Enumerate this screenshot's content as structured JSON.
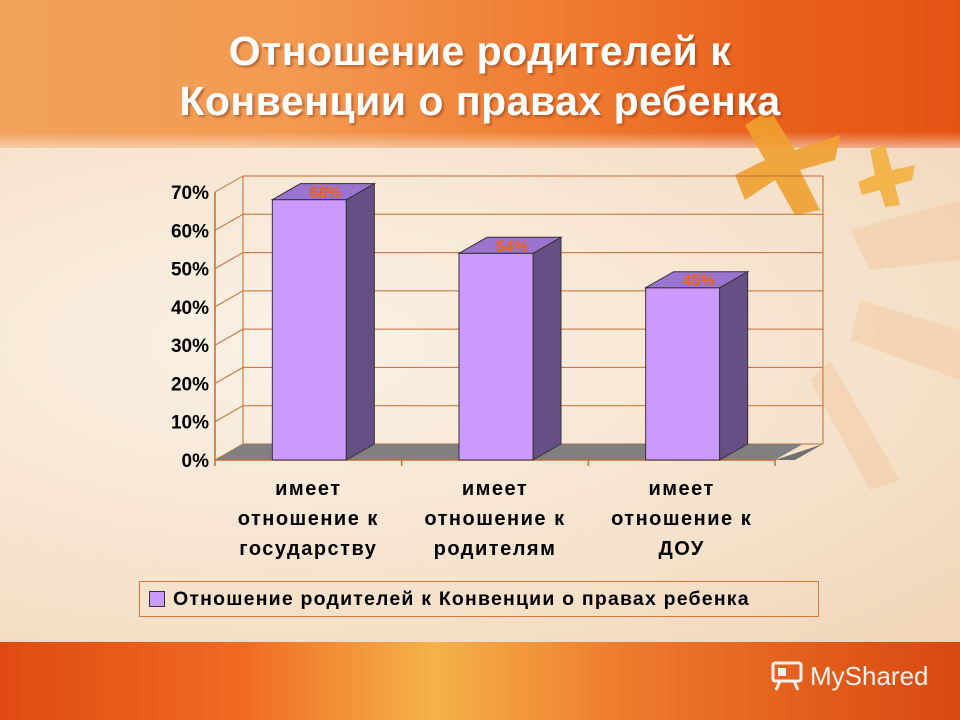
{
  "slide": {
    "title_line1": "Отношение родителей к",
    "title_line2": "Конвенции о правах ребенка"
  },
  "chart_data": {
    "type": "bar",
    "categories": [
      [
        "имеет",
        "отношение к",
        "государству"
      ],
      [
        "имеет",
        "отношение к",
        "родителям"
      ],
      [
        "имеет",
        "отношение к",
        "ДОУ"
      ]
    ],
    "series": [
      {
        "name": "Отношение родителей к Конвенции о правах ребенка",
        "values": [
          68,
          54,
          45
        ]
      }
    ],
    "data_labels": [
      "68%",
      "54%",
      "45%"
    ],
    "y_ticks": [
      "0%",
      "10%",
      "20%",
      "30%",
      "40%",
      "50%",
      "60%",
      "70%"
    ],
    "ylim": [
      0,
      70
    ],
    "grid": true,
    "legend_position": "bottom",
    "three_d": true,
    "colors": {
      "bar_front": "#cc99ff",
      "bar_side": "#664f85",
      "bar_top": "#9b74d0",
      "floor": "#808080",
      "data_label": "#f06010"
    }
  },
  "legend": {
    "label": "Отношение родителей к Конвенции о правах ребенка"
  },
  "watermark": {
    "text": "MyShared",
    "icon": "presentation-board-icon"
  }
}
